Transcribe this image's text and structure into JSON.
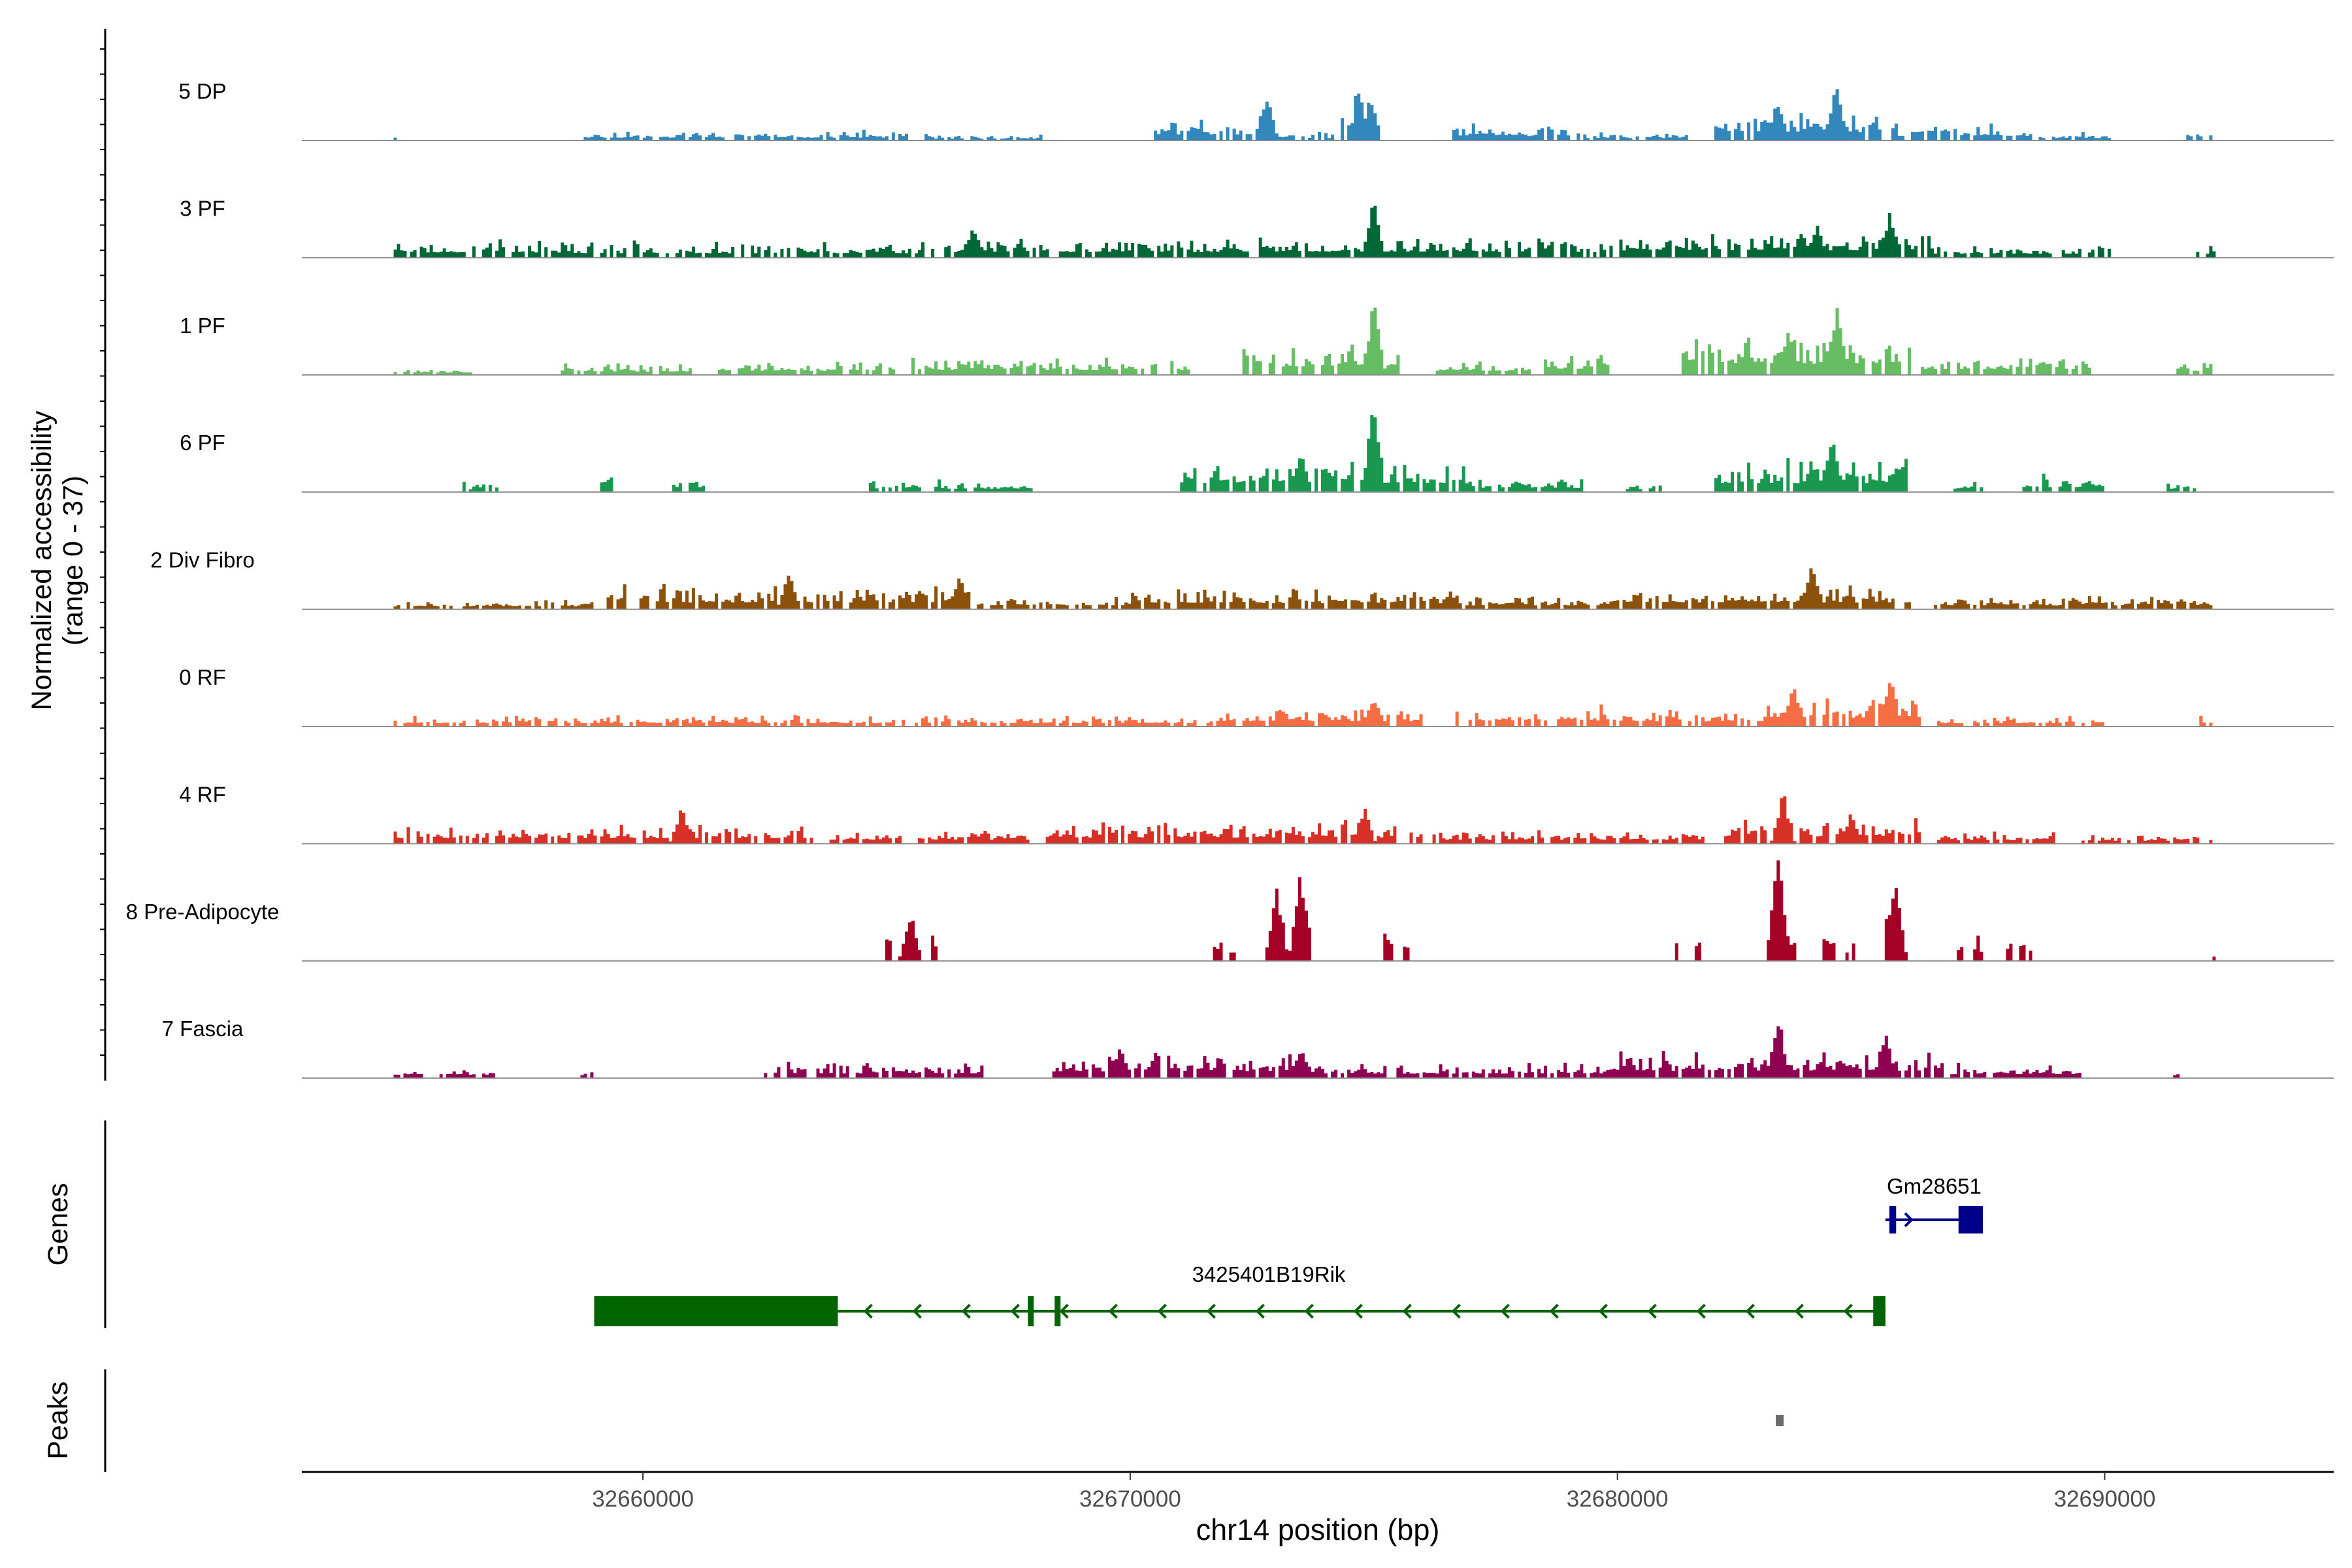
{
  "chart_data": {
    "type": "area",
    "title": "",
    "ylabel_line1": "Normalized accessibility",
    "ylabel_line2": "(range 0 - 37)",
    "xlabel": "chr14 position (bp)",
    "xlim": [
      32653000,
      32694700
    ],
    "x_ticks": [
      32660000,
      32670000,
      32680000,
      32690000
    ],
    "x_tick_labels": [
      "32660000",
      "32670000",
      "32680000",
      "32690000"
    ],
    "y_range": [
      0,
      37
    ],
    "series": [
      {
        "name": "5 DP",
        "color": "#3288BD",
        "seed": 11,
        "regions": [
          [
            32654.9,
            32655.0,
            0.08
          ],
          [
            32658.8,
            32665.5,
            0.1
          ],
          [
            32665.8,
            32668.2,
            0.06
          ],
          [
            32670.5,
            32672.9,
            0.22
          ],
          [
            32672.9,
            32674.2,
            0.08
          ],
          [
            32674.3,
            32675.1,
            0.45
          ],
          [
            32676.5,
            32679.0,
            0.16
          ],
          [
            32679.1,
            32681.5,
            0.08
          ],
          [
            32682.0,
            32685.5,
            0.3
          ],
          [
            32685.5,
            32688.5,
            0.16
          ],
          [
            32688.6,
            32690.2,
            0.08
          ],
          [
            32691.7,
            32692.3,
            0.14
          ]
        ],
        "peaks": [
          [
            32672.8,
            0.45
          ],
          [
            32674.7,
            0.45
          ],
          [
            32684.5,
            0.55
          ],
          [
            32683.3,
            0.4
          ]
        ]
      },
      {
        "name": "3 PF",
        "color": "#006837",
        "seed": 23,
        "regions": [
          [
            32654.9,
            32657.9,
            0.18
          ],
          [
            32658.0,
            32667.0,
            0.16
          ],
          [
            32667.0,
            32672.0,
            0.2
          ],
          [
            32672.0,
            32676.0,
            0.22
          ],
          [
            32676.0,
            32680.0,
            0.2
          ],
          [
            32680.0,
            32686.5,
            0.26
          ],
          [
            32686.5,
            32690.2,
            0.14
          ],
          [
            32691.8,
            32692.3,
            0.14
          ]
        ],
        "peaks": [
          [
            32675.0,
            0.55
          ],
          [
            32685.6,
            0.45
          ],
          [
            32684.1,
            0.3
          ],
          [
            32666.8,
            0.3
          ]
        ]
      },
      {
        "name": "1 PF",
        "color": "#66BD63",
        "seed": 37,
        "regions": [
          [
            32654.9,
            32656.5,
            0.08
          ],
          [
            32658.3,
            32661.0,
            0.12
          ],
          [
            32661.5,
            32665.2,
            0.14
          ],
          [
            32665.5,
            32671.2,
            0.18
          ],
          [
            32672.3,
            32675.5,
            0.3
          ],
          [
            32676.3,
            32678.2,
            0.14
          ],
          [
            32678.4,
            32680.0,
            0.22
          ],
          [
            32681.3,
            32686.0,
            0.4
          ],
          [
            32686.2,
            32689.7,
            0.2
          ],
          [
            32691.5,
            32692.3,
            0.14
          ]
        ],
        "peaks": [
          [
            32675.0,
            0.7
          ],
          [
            32684.5,
            0.65
          ],
          [
            32683.5,
            0.45
          ]
        ]
      },
      {
        "name": "6 PF",
        "color": "#1A9850",
        "seed": 41,
        "regions": [
          [
            32656.3,
            32657.1,
            0.1
          ],
          [
            32659.1,
            32659.4,
            0.22
          ],
          [
            32660.6,
            32661.3,
            0.14
          ],
          [
            32664.6,
            32668.0,
            0.12
          ],
          [
            32671.0,
            32677.0,
            0.32
          ],
          [
            32677.0,
            32679.3,
            0.14
          ],
          [
            32680.2,
            32680.9,
            0.1
          ],
          [
            32682.0,
            32686.0,
            0.32
          ],
          [
            32686.9,
            32687.5,
            0.1
          ],
          [
            32688.3,
            32690.0,
            0.18
          ],
          [
            32691.3,
            32691.9,
            0.12
          ]
        ],
        "peaks": [
          [
            32675.0,
            0.95
          ],
          [
            32684.4,
            0.55
          ],
          [
            32673.5,
            0.4
          ]
        ]
      },
      {
        "name": "2 Div Fibro",
        "color": "#8C510A",
        "seed": 53,
        "regions": [
          [
            32654.9,
            32659.0,
            0.1
          ],
          [
            32659.2,
            32666.8,
            0.24
          ],
          [
            32666.8,
            32670.0,
            0.14
          ],
          [
            32670.0,
            32676.8,
            0.22
          ],
          [
            32676.8,
            32680.0,
            0.14
          ],
          [
            32680.0,
            32686.0,
            0.24
          ],
          [
            32686.5,
            32692.3,
            0.14
          ]
        ],
        "peaks": [
          [
            32663.0,
            0.35
          ],
          [
            32684.0,
            0.45
          ],
          [
            32666.5,
            0.3
          ]
        ]
      },
      {
        "name": "0 RF",
        "color": "#F46D43",
        "seed": 67,
        "regions": [
          [
            32654.9,
            32672.0,
            0.12
          ],
          [
            32672.0,
            32676.0,
            0.18
          ],
          [
            32676.7,
            32680.0,
            0.22
          ],
          [
            32680.0,
            32683.0,
            0.18
          ],
          [
            32683.0,
            32686.2,
            0.32
          ],
          [
            32686.5,
            32690.0,
            0.12
          ],
          [
            32691.9,
            32692.2,
            0.12
          ]
        ],
        "peaks": [
          [
            32685.6,
            0.5
          ],
          [
            32683.6,
            0.4
          ],
          [
            32675.0,
            0.3
          ]
        ]
      },
      {
        "name": "4 RF",
        "color": "#D73027",
        "seed": 79,
        "regions": [
          [
            32654.9,
            32663.5,
            0.2
          ],
          [
            32663.8,
            32668.0,
            0.14
          ],
          [
            32668.3,
            32676.0,
            0.22
          ],
          [
            32676.2,
            32681.8,
            0.14
          ],
          [
            32682.2,
            32686.3,
            0.26
          ],
          [
            32686.4,
            32689.0,
            0.12
          ],
          [
            32689.5,
            32692.2,
            0.1
          ]
        ],
        "peaks": [
          [
            32683.4,
            0.5
          ],
          [
            32660.8,
            0.35
          ],
          [
            32674.8,
            0.35
          ],
          [
            32684.8,
            0.3
          ]
        ]
      },
      {
        "name": "8 Pre-Adipocyte",
        "color": "#A50026",
        "seed": 83,
        "regions": [
          [
            32665.0,
            32665.2,
            0.3
          ],
          [
            32665.4,
            32665.6,
            0.3
          ],
          [
            32665.9,
            32666.1,
            0.3
          ],
          [
            32671.7,
            32671.9,
            0.3
          ],
          [
            32672.0,
            32672.2,
            0.3
          ],
          [
            32672.8,
            32673.2,
            0.55
          ],
          [
            32673.3,
            32673.7,
            0.65
          ],
          [
            32675.2,
            32675.4,
            0.3
          ],
          [
            32675.6,
            32675.8,
            0.3
          ],
          [
            32681.2,
            32681.4,
            0.3
          ],
          [
            32681.6,
            32681.8,
            0.3
          ],
          [
            32683.1,
            32683.7,
            0.55
          ],
          [
            32684.2,
            32684.5,
            0.3
          ],
          [
            32684.7,
            32684.9,
            0.3
          ],
          [
            32685.5,
            32685.8,
            0.6
          ],
          [
            32686.9,
            32687.1,
            0.3
          ],
          [
            32687.3,
            32687.5,
            0.3
          ],
          [
            32688.0,
            32688.5,
            0.3
          ],
          [
            32692.2,
            32692.25,
            0.12
          ]
        ],
        "peaks": [
          [
            32683.3,
            1.0
          ],
          [
            32673.5,
            0.85
          ],
          [
            32685.7,
            0.85
          ],
          [
            32673.0,
            0.7
          ],
          [
            32665.5,
            0.45
          ]
        ]
      },
      {
        "name": "7 Fascia",
        "color": "#8E0152",
        "seed": 97,
        "regions": [
          [
            32654.9,
            32657.0,
            0.12
          ],
          [
            32658.7,
            32659.0,
            0.1
          ],
          [
            32662.5,
            32667.0,
            0.16
          ],
          [
            32668.4,
            32673.5,
            0.24
          ],
          [
            32673.5,
            32680.0,
            0.16
          ],
          [
            32680.0,
            32686.5,
            0.26
          ],
          [
            32686.5,
            32689.5,
            0.14
          ],
          [
            32691.4,
            32691.6,
            0.1
          ]
        ],
        "peaks": [
          [
            32683.3,
            0.6
          ],
          [
            32685.5,
            0.45
          ],
          [
            32673.5,
            0.3
          ],
          [
            32669.8,
            0.28
          ]
        ]
      }
    ],
    "genes_label": "Genes",
    "peaks_label": "Peaks",
    "genes": [
      {
        "name": "3425401B19Rik",
        "strand": "-",
        "color": "#006400",
        "start": 32659.0,
        "end": 32685.5,
        "exons": [
          [
            32659.0,
            32664.0
          ],
          [
            32667.9,
            32668.0
          ],
          [
            32668.45,
            32668.55
          ],
          [
            32685.25,
            32685.5
          ]
        ]
      },
      {
        "name": "Gm28651",
        "strand": "+",
        "color": "#00008B",
        "start": 32685.5,
        "end": 32687.5,
        "exons": [
          [
            32685.58,
            32685.72
          ],
          [
            32687.0,
            32687.5
          ]
        ]
      }
    ],
    "peaks_track": [
      [
        32683.25,
        32683.4
      ]
    ]
  }
}
